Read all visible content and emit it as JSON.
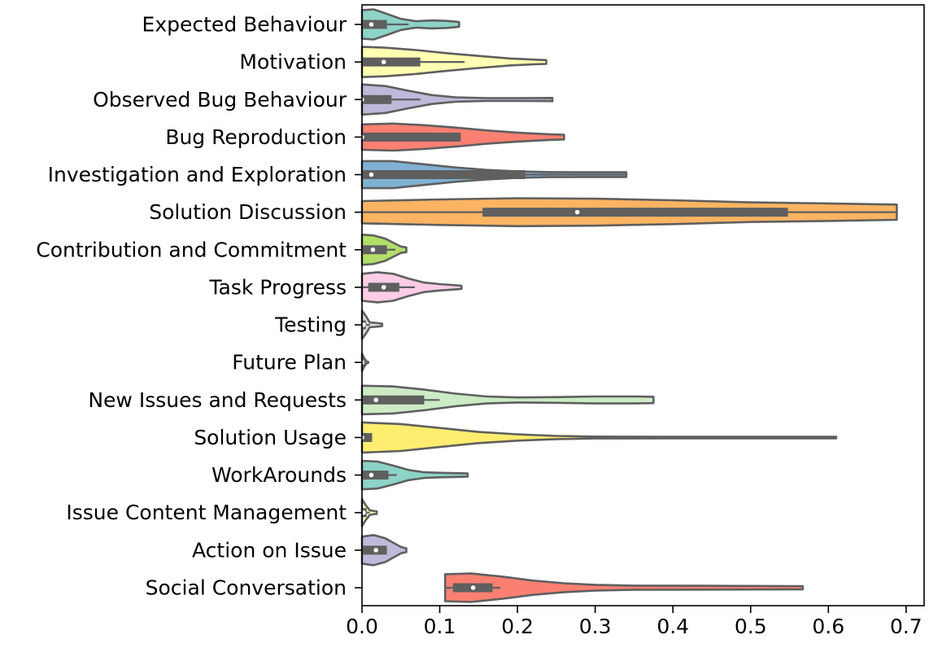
{
  "chart_data": {
    "type": "violin",
    "orientation": "horizontal",
    "title": "",
    "xlabel": "",
    "ylabel": "",
    "xlim": [
      0.0,
      0.72
    ],
    "xticks": [
      "0.0",
      "0.1",
      "0.2",
      "0.3",
      "0.4",
      "0.5",
      "0.6",
      "0.7"
    ],
    "categories": [
      {
        "label": "Expected Behaviour",
        "color": "#8dd3c7",
        "max": 0.125,
        "q1": 0.0,
        "median": 0.012,
        "q3": 0.032,
        "whisker_hi": 0.06,
        "width": [
          [
            0.0,
            0.9
          ],
          [
            0.015,
            0.95
          ],
          [
            0.03,
            0.7
          ],
          [
            0.05,
            0.35
          ],
          [
            0.07,
            0.2
          ],
          [
            0.09,
            0.25
          ],
          [
            0.11,
            0.22
          ],
          [
            0.125,
            0.15
          ]
        ]
      },
      {
        "label": "Motivation",
        "color": "#ffffb3",
        "max": 0.237,
        "q1": 0.0,
        "median": 0.028,
        "q3": 0.075,
        "whisker_hi": 0.132,
        "width": [
          [
            0.0,
            0.95
          ],
          [
            0.03,
            0.9
          ],
          [
            0.07,
            0.75
          ],
          [
            0.11,
            0.55
          ],
          [
            0.15,
            0.38
          ],
          [
            0.19,
            0.22
          ],
          [
            0.22,
            0.15
          ],
          [
            0.237,
            0.12
          ]
        ]
      },
      {
        "label": "Observed Bug Behaviour",
        "color": "#bebada",
        "max": 0.245,
        "q1": 0.0,
        "median": 0.0,
        "q3": 0.038,
        "whisker_hi": 0.075,
        "width": [
          [
            0.0,
            0.95
          ],
          [
            0.03,
            0.85
          ],
          [
            0.06,
            0.55
          ],
          [
            0.09,
            0.28
          ],
          [
            0.12,
            0.14
          ],
          [
            0.16,
            0.09
          ],
          [
            0.2,
            0.09
          ],
          [
            0.245,
            0.1
          ]
        ]
      },
      {
        "label": "Bug Reproduction",
        "color": "#fb8072",
        "max": 0.26,
        "q1": 0.0,
        "median": 0.0,
        "q3": 0.127,
        "whisker_hi": 0.127,
        "width": [
          [
            0.0,
            0.8
          ],
          [
            0.04,
            0.85
          ],
          [
            0.08,
            0.75
          ],
          [
            0.12,
            0.6
          ],
          [
            0.16,
            0.42
          ],
          [
            0.2,
            0.28
          ],
          [
            0.24,
            0.18
          ],
          [
            0.26,
            0.15
          ]
        ]
      },
      {
        "label": "Investigation and Exploration",
        "color": "#80b1d3",
        "max": 0.34,
        "q1": 0.0,
        "median": 0.012,
        "q3": 0.21,
        "whisker_hi": 0.34,
        "width": [
          [
            0.0,
            0.85
          ],
          [
            0.04,
            0.85
          ],
          [
            0.08,
            0.65
          ],
          [
            0.12,
            0.45
          ],
          [
            0.16,
            0.3
          ],
          [
            0.2,
            0.2
          ],
          [
            0.24,
            0.16
          ],
          [
            0.28,
            0.15
          ],
          [
            0.34,
            0.15
          ]
        ]
      },
      {
        "label": "Solution Discussion",
        "color": "#fdb462",
        "max": 0.688,
        "q1": 0.155,
        "median": 0.277,
        "q3": 0.548,
        "whisker_hi": 0.688,
        "width": [
          [
            0.0,
            0.7
          ],
          [
            0.1,
            0.8
          ],
          [
            0.2,
            0.88
          ],
          [
            0.3,
            0.85
          ],
          [
            0.4,
            0.75
          ],
          [
            0.5,
            0.62
          ],
          [
            0.6,
            0.55
          ],
          [
            0.688,
            0.48
          ]
        ]
      },
      {
        "label": "Contribution and Commitment",
        "color": "#b3de69",
        "max": 0.057,
        "q1": 0.0,
        "median": 0.014,
        "q3": 0.032,
        "whisker_hi": 0.043,
        "width": [
          [
            0.0,
            0.95
          ],
          [
            0.015,
            0.9
          ],
          [
            0.03,
            0.7
          ],
          [
            0.042,
            0.4
          ],
          [
            0.05,
            0.2
          ],
          [
            0.057,
            0.15
          ]
        ]
      },
      {
        "label": "Task Progress",
        "color": "#fccde5",
        "max": 0.128,
        "q1": 0.008,
        "median": 0.028,
        "q3": 0.048,
        "whisker_hi": 0.068,
        "width": [
          [
            0.0,
            0.85
          ],
          [
            0.02,
            0.95
          ],
          [
            0.04,
            0.85
          ],
          [
            0.06,
            0.55
          ],
          [
            0.08,
            0.3
          ],
          [
            0.1,
            0.2
          ],
          [
            0.115,
            0.15
          ],
          [
            0.128,
            0.1
          ]
        ]
      },
      {
        "label": "Testing",
        "color": "#d9d9d9",
        "max": 0.026,
        "q1": 0.0,
        "median": 0.002,
        "q3": 0.005,
        "whisker_hi": 0.01,
        "width": [
          [
            0.0,
            0.9
          ],
          [
            0.005,
            0.55
          ],
          [
            0.01,
            0.15
          ],
          [
            0.018,
            0.12
          ],
          [
            0.026,
            0.08
          ]
        ]
      },
      {
        "label": "Future Plan",
        "color": "#bc80bd",
        "max": 0.008,
        "q1": 0.0,
        "median": 0.0,
        "q3": 0.002,
        "whisker_hi": 0.004,
        "width": [
          [
            0.0,
            0.55
          ],
          [
            0.003,
            0.25
          ],
          [
            0.006,
            0.06
          ],
          [
            0.008,
            0.04
          ]
        ]
      },
      {
        "label": "New Issues and Requests",
        "color": "#ccebc5",
        "max": 0.375,
        "q1": 0.0,
        "median": 0.018,
        "q3": 0.08,
        "whisker_hi": 0.1,
        "width": [
          [
            0.0,
            0.9
          ],
          [
            0.04,
            0.85
          ],
          [
            0.08,
            0.65
          ],
          [
            0.12,
            0.4
          ],
          [
            0.16,
            0.22
          ],
          [
            0.2,
            0.16
          ],
          [
            0.25,
            0.18
          ],
          [
            0.3,
            0.22
          ],
          [
            0.35,
            0.22
          ],
          [
            0.375,
            0.2
          ]
        ]
      },
      {
        "label": "Solution Usage",
        "color": "#ffed6f",
        "max": 0.61,
        "q1": 0.0,
        "median": 0.0,
        "q3": 0.013,
        "whisker_hi": 0.013,
        "width": [
          [
            0.0,
            0.95
          ],
          [
            0.05,
            0.85
          ],
          [
            0.1,
            0.6
          ],
          [
            0.15,
            0.35
          ],
          [
            0.2,
            0.2
          ],
          [
            0.25,
            0.1
          ],
          [
            0.3,
            0.06
          ],
          [
            0.4,
            0.05
          ],
          [
            0.5,
            0.05
          ],
          [
            0.61,
            0.05
          ]
        ]
      },
      {
        "label": "WorkArounds",
        "color": "#8dd3c7",
        "max": 0.136,
        "q1": 0.0,
        "median": 0.012,
        "q3": 0.034,
        "whisker_hi": 0.045,
        "width": [
          [
            0.0,
            0.9
          ],
          [
            0.02,
            0.85
          ],
          [
            0.04,
            0.6
          ],
          [
            0.06,
            0.32
          ],
          [
            0.08,
            0.18
          ],
          [
            0.1,
            0.14
          ],
          [
            0.12,
            0.12
          ],
          [
            0.136,
            0.1
          ]
        ]
      },
      {
        "label": "Issue Content Management",
        "color": "#ffffb3",
        "max": 0.019,
        "q1": 0.0,
        "median": 0.002,
        "q3": 0.006,
        "whisker_hi": 0.01,
        "width": [
          [
            0.0,
            0.85
          ],
          [
            0.005,
            0.45
          ],
          [
            0.01,
            0.15
          ],
          [
            0.015,
            0.1
          ],
          [
            0.019,
            0.08
          ]
        ]
      },
      {
        "label": "Action on Issue",
        "color": "#bebada",
        "max": 0.057,
        "q1": 0.0,
        "median": 0.018,
        "q3": 0.032,
        "whisker_hi": 0.032,
        "width": [
          [
            0.0,
            0.85
          ],
          [
            0.015,
            0.95
          ],
          [
            0.03,
            0.75
          ],
          [
            0.042,
            0.42
          ],
          [
            0.05,
            0.2
          ],
          [
            0.057,
            0.12
          ]
        ]
      },
      {
        "label": "Social Conversation",
        "color": "#fb8072",
        "max": 0.567,
        "min": 0.107,
        "q1": 0.117,
        "median": 0.143,
        "q3": 0.168,
        "whisker_hi": 0.178,
        "width": [
          [
            0.107,
            0.85
          ],
          [
            0.14,
            0.9
          ],
          [
            0.18,
            0.7
          ],
          [
            0.22,
            0.45
          ],
          [
            0.26,
            0.28
          ],
          [
            0.3,
            0.18
          ],
          [
            0.35,
            0.13
          ],
          [
            0.45,
            0.12
          ],
          [
            0.567,
            0.1
          ]
        ]
      }
    ]
  }
}
